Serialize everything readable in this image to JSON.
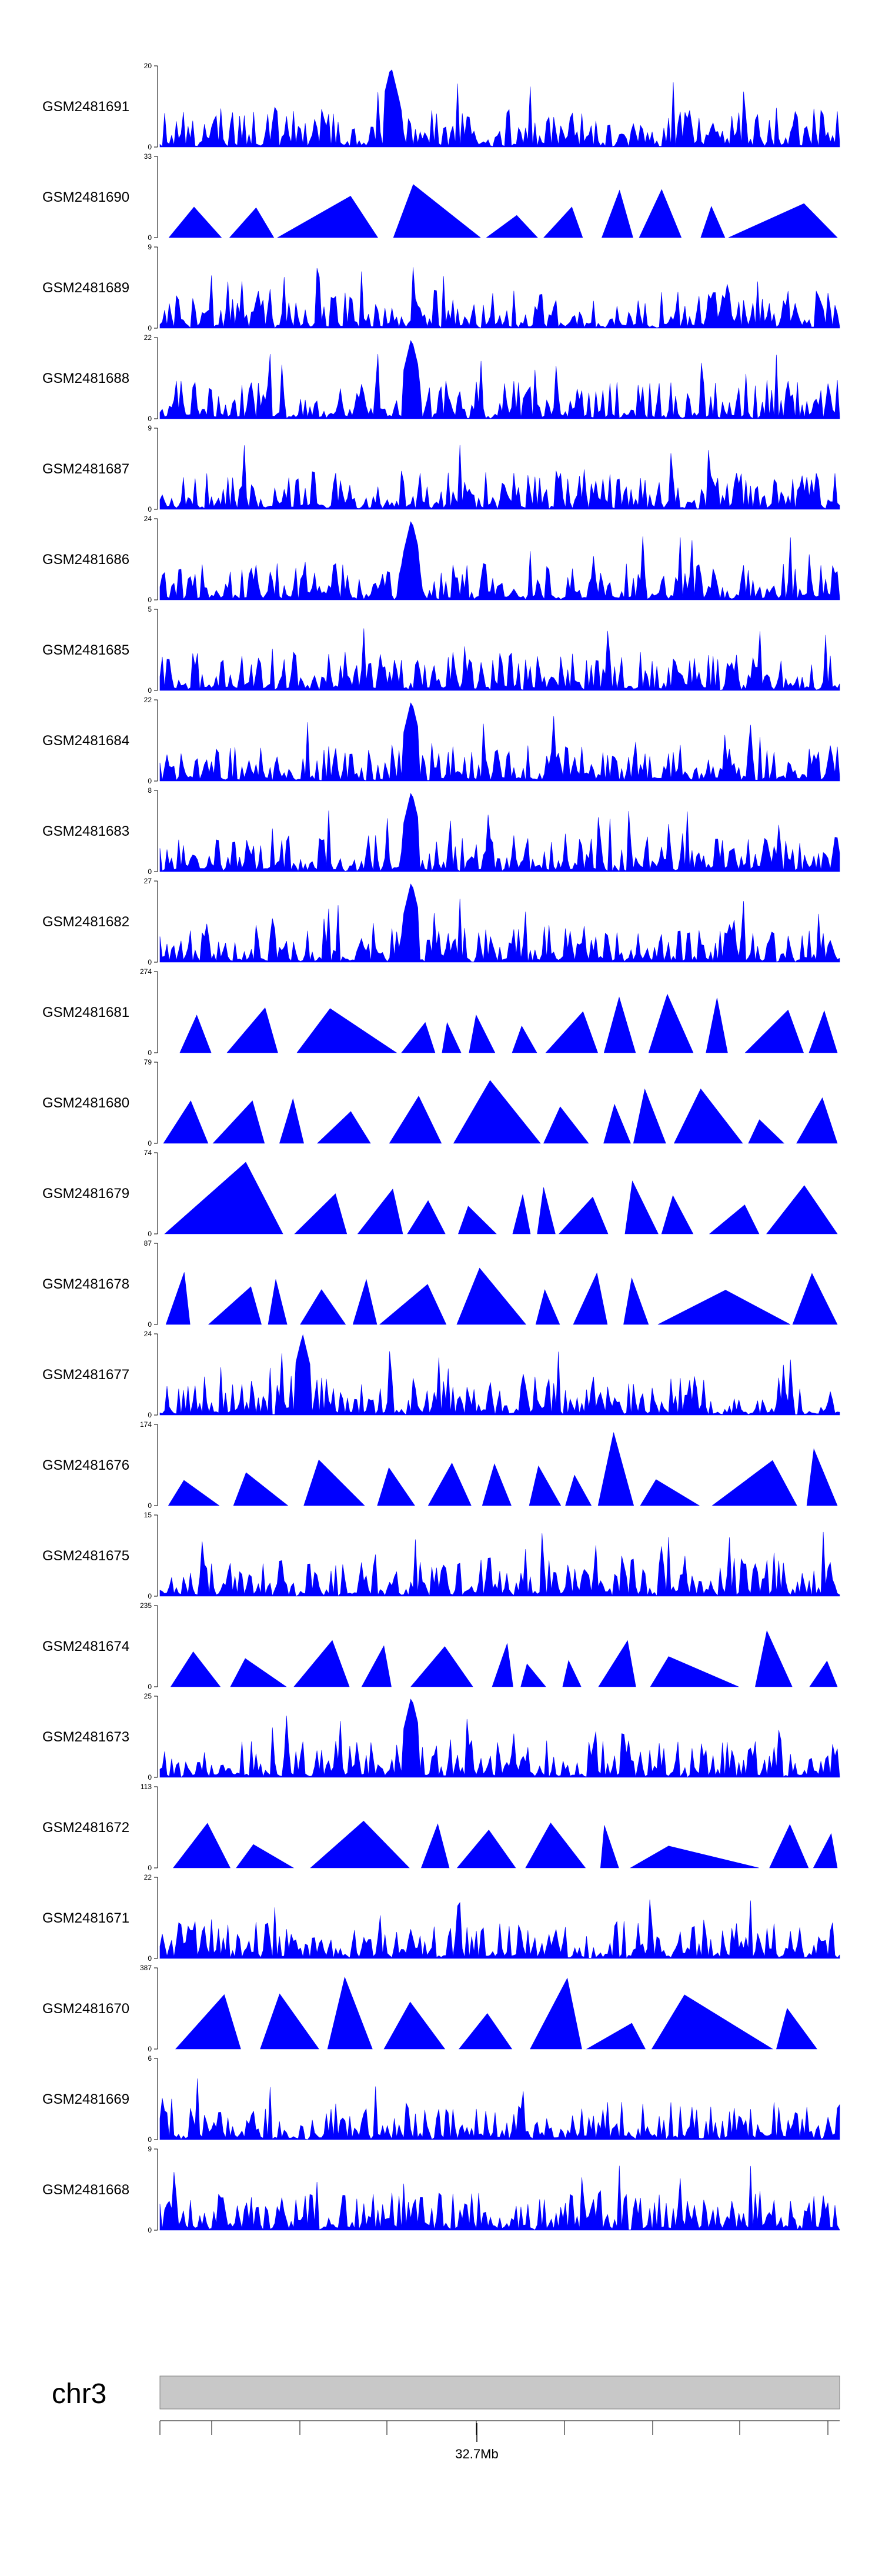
{
  "colors": {
    "signal": "#0000ff",
    "axis": "#000000",
    "ideogram": "#c8c8c8"
  },
  "chart_data": {
    "type": "area",
    "title": "",
    "chromosome": "chr3",
    "genome_axis": {
      "tick_label": "32.7Mb"
    },
    "tracks": [
      {
        "name": "GSM2481691",
        "ymax": "20",
        "ymin": "0",
        "style": "dense",
        "peak_at": 0.34
      },
      {
        "name": "GSM2481690",
        "ymax": "33",
        "ymin": "0",
        "style": "sparse"
      },
      {
        "name": "GSM2481689",
        "ymax": "9",
        "ymin": "0",
        "style": "dense"
      },
      {
        "name": "GSM2481688",
        "ymax": "22",
        "ymin": "0",
        "style": "dense",
        "peak_at": 0.37
      },
      {
        "name": "GSM2481687",
        "ymax": "9",
        "ymin": "0",
        "style": "dense"
      },
      {
        "name": "GSM2481686",
        "ymax": "24",
        "ymin": "0",
        "style": "dense",
        "peak_at": 0.37
      },
      {
        "name": "GSM2481685",
        "ymax": "5",
        "ymin": "0",
        "style": "dense"
      },
      {
        "name": "GSM2481684",
        "ymax": "22",
        "ymin": "0",
        "style": "dense",
        "peak_at": 0.37
      },
      {
        "name": "GSM2481683",
        "ymax": "8",
        "ymin": "0",
        "style": "dense",
        "peak_at": 0.37
      },
      {
        "name": "GSM2481682",
        "ymax": "27",
        "ymin": "0",
        "style": "dense",
        "peak_at": 0.37
      },
      {
        "name": "GSM2481681",
        "ymax": "274",
        "ymin": "0",
        "style": "sparse"
      },
      {
        "name": "GSM2481680",
        "ymax": "79",
        "ymin": "0",
        "style": "sparse"
      },
      {
        "name": "GSM2481679",
        "ymax": "74",
        "ymin": "0",
        "style": "sparse"
      },
      {
        "name": "GSM2481678",
        "ymax": "87",
        "ymin": "0",
        "style": "sparse"
      },
      {
        "name": "GSM2481677",
        "ymax": "24",
        "ymin": "0",
        "style": "dense",
        "peak_at": 0.21
      },
      {
        "name": "GSM2481676",
        "ymax": "174",
        "ymin": "0",
        "style": "sparse"
      },
      {
        "name": "GSM2481675",
        "ymax": "15",
        "ymin": "0",
        "style": "dense"
      },
      {
        "name": "GSM2481674",
        "ymax": "235",
        "ymin": "0",
        "style": "sparse"
      },
      {
        "name": "GSM2481673",
        "ymax": "25",
        "ymin": "0",
        "style": "dense",
        "peak_at": 0.37
      },
      {
        "name": "GSM2481672",
        "ymax": "113",
        "ymin": "0",
        "style": "sparse"
      },
      {
        "name": "GSM2481671",
        "ymax": "22",
        "ymin": "0",
        "style": "dense"
      },
      {
        "name": "GSM2481670",
        "ymax": "387",
        "ymin": "0",
        "style": "sparse"
      },
      {
        "name": "GSM2481669",
        "ymax": "6",
        "ymin": "0",
        "style": "dense"
      },
      {
        "name": "GSM2481668",
        "ymax": "9",
        "ymin": "0",
        "style": "dense"
      }
    ]
  }
}
